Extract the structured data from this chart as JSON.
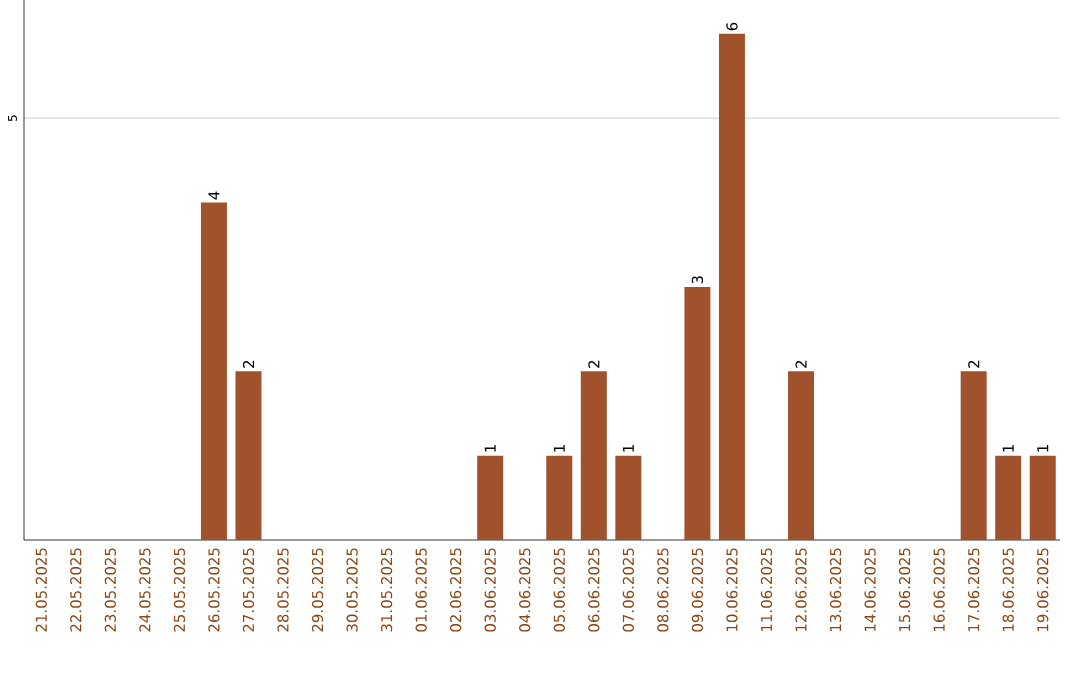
{
  "chart_data": {
    "type": "bar",
    "categories": [
      "21.05.2025",
      "22.05.2025",
      "23.05.2025",
      "24.05.2025",
      "25.05.2025",
      "26.05.2025",
      "27.05.2025",
      "28.05.2025",
      "29.05.2025",
      "30.05.2025",
      "31.05.2025",
      "01.06.2025",
      "02.06.2025",
      "03.06.2025",
      "04.06.2025",
      "05.06.2025",
      "06.06.2025",
      "07.06.2025",
      "08.06.2025",
      "09.06.2025",
      "10.06.2025",
      "11.06.2025",
      "12.06.2025",
      "13.06.2025",
      "14.06.2025",
      "15.06.2025",
      "16.06.2025",
      "17.06.2025",
      "18.06.2025",
      "19.06.2025"
    ],
    "values": [
      0,
      0,
      0,
      0,
      0,
      4,
      2,
      0,
      0,
      0,
      0,
      0,
      0,
      1,
      0,
      1,
      2,
      1,
      0,
      3,
      6,
      0,
      2,
      0,
      0,
      0,
      0,
      2,
      1,
      1
    ],
    "value_labels": [
      null,
      null,
      null,
      null,
      null,
      "4",
      "2",
      null,
      null,
      null,
      null,
      null,
      null,
      "1",
      null,
      "1",
      "2",
      "1",
      null,
      "3",
      "6",
      null,
      "2",
      null,
      null,
      null,
      null,
      "2",
      "1",
      "1"
    ],
    "color": "#a0522d",
    "ylim": [
      0,
      6.4
    ],
    "yticks": [
      5
    ],
    "grid": "y"
  }
}
